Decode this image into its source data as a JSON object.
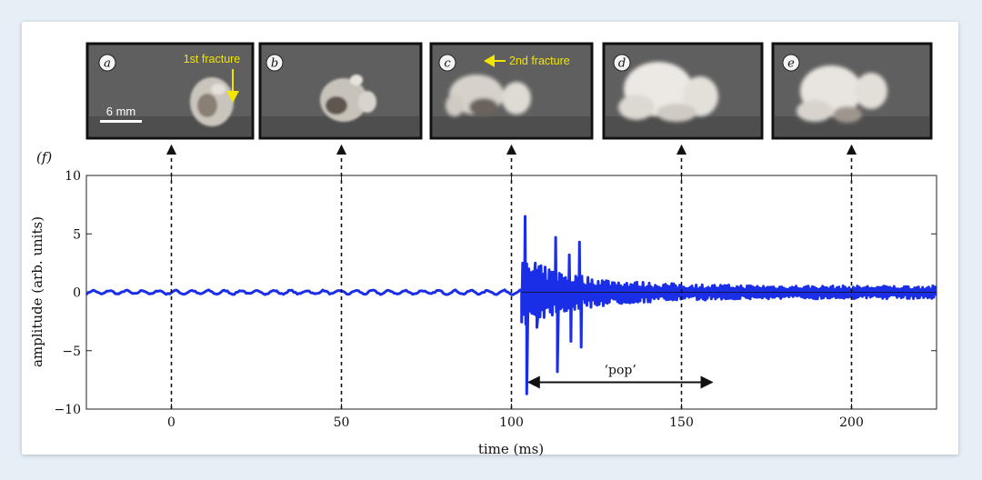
{
  "chart_data": {
    "type": "line",
    "panel_label": "(f)",
    "xlabel": "time (ms)",
    "ylabel": "amplitude (arb. units)",
    "xlim": [
      -25,
      225
    ],
    "ylim": [
      -10,
      10
    ],
    "xticks": [
      0,
      50,
      100,
      150,
      200
    ],
    "xtick_labels": [
      "0",
      "50",
      "100",
      "150",
      "200"
    ],
    "yticks": [
      10,
      5,
      0,
      -5,
      -10
    ],
    "ytick_labels": [
      "10",
      "5",
      "0",
      "−5",
      "−10"
    ],
    "grid": false,
    "series": [
      {
        "color": "#1a2ee8",
        "points": [
          [
            -25,
            0.1
          ],
          [
            0,
            0.0
          ],
          [
            50,
            0.0
          ],
          [
            100,
            0.1
          ],
          [
            103,
            0.2
          ],
          [
            104,
            6.5
          ],
          [
            104.5,
            -8.7
          ],
          [
            107,
            2.5
          ],
          [
            107.5,
            -3.0
          ],
          [
            110,
            1.5
          ],
          [
            113,
            4.7
          ],
          [
            113.5,
            -6.8
          ],
          [
            117,
            3.2
          ],
          [
            117.5,
            -4.2
          ],
          [
            120,
            4.3
          ],
          [
            120.5,
            -4.7
          ],
          [
            130,
            1.4
          ],
          [
            140,
            1.2
          ],
          [
            150,
            0.8
          ],
          [
            175,
            0.6
          ],
          [
            200,
            0.5
          ],
          [
            225,
            -0.3
          ]
        ]
      }
    ],
    "markers_x": [
      0,
      50,
      100,
      150,
      200
    ],
    "annotations": [
      {
        "text": "‘pop’",
        "x_start": 105,
        "x_end": 159,
        "y": -7.7
      }
    ]
  },
  "photos": [
    {
      "label": "a",
      "annotation": "1st fracture",
      "scale_bar": "6 mm"
    },
    {
      "label": "b"
    },
    {
      "label": "c",
      "annotation": "2nd fracture"
    },
    {
      "label": "d"
    },
    {
      "label": "e"
    }
  ],
  "colors": {
    "signal": "#1a2ee8",
    "annotation": "#f2e600",
    "photo_background": "#5e5e5e"
  }
}
